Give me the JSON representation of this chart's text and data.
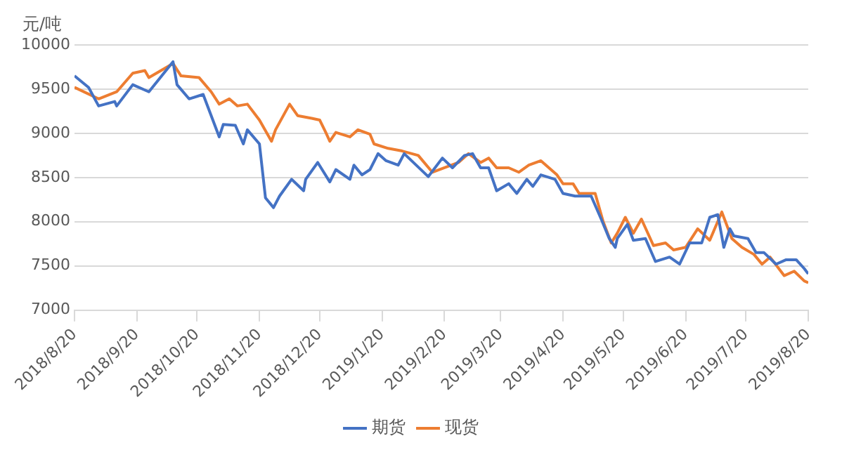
{
  "chart_data": {
    "type": "line",
    "ylabel": "元/吨",
    "ylim": [
      7000,
      10000
    ],
    "yticks": [
      7000,
      7500,
      8000,
      8500,
      9000,
      9500,
      10000
    ],
    "xlim": [
      "2018-08-20",
      "2019-08-20"
    ],
    "xticks": [
      {
        "value": "2018-08-20",
        "label": "2018/8/20"
      },
      {
        "value": "2018-09-20",
        "label": "2018/9/20"
      },
      {
        "value": "2018-10-20",
        "label": "2018/10/20"
      },
      {
        "value": "2018-11-20",
        "label": "2018/11/20"
      },
      {
        "value": "2018-12-20",
        "label": "2018/12/20"
      },
      {
        "value": "2019-01-20",
        "label": "2019/1/20"
      },
      {
        "value": "2019-02-20",
        "label": "2019/2/20"
      },
      {
        "value": "2019-03-20",
        "label": "2019/3/20"
      },
      {
        "value": "2019-04-20",
        "label": "2019/4/20"
      },
      {
        "value": "2019-05-20",
        "label": "2019/5/20"
      },
      {
        "value": "2019-06-20",
        "label": "2019/6/20"
      },
      {
        "value": "2019-07-20",
        "label": "2019/7/20"
      },
      {
        "value": "2019-08-20",
        "label": "2019/8/20"
      }
    ],
    "grid": "y",
    "legend": "bottom",
    "marker": "none",
    "line_style": "solid",
    "series": [
      {
        "name": "期货",
        "color": "#4472c4",
        "x": [
          "2018-08-20",
          "2018-08-27",
          "2018-09-01",
          "2018-09-09",
          "2018-09-10",
          "2018-09-18",
          "2018-09-26",
          "2018-10-08",
          "2018-10-10",
          "2018-10-16",
          "2018-10-23",
          "2018-10-31",
          "2018-11-02",
          "2018-11-08",
          "2018-11-12",
          "2018-11-14",
          "2018-11-20",
          "2018-11-23",
          "2018-11-27",
          "2018-11-30",
          "2018-12-06",
          "2018-12-12",
          "2018-12-13",
          "2018-12-19",
          "2018-12-25",
          "2018-12-28",
          "2019-01-04",
          "2019-01-06",
          "2019-01-10",
          "2019-01-14",
          "2019-01-18",
          "2019-01-22",
          "2019-01-28",
          "2019-01-31",
          "2019-02-12",
          "2019-02-19",
          "2019-02-24",
          "2019-03-02",
          "2019-03-06",
          "2019-03-10",
          "2019-03-14",
          "2019-03-18",
          "2019-03-24",
          "2019-03-28",
          "2019-04-02",
          "2019-04-05",
          "2019-04-09",
          "2019-04-16",
          "2019-04-20",
          "2019-04-26",
          "2019-05-04",
          "2019-05-09",
          "2019-05-13",
          "2019-05-16",
          "2019-05-17",
          "2019-05-22",
          "2019-05-25",
          "2019-05-31",
          "2019-06-05",
          "2019-06-12",
          "2019-06-17",
          "2019-06-22",
          "2019-06-28",
          "2019-07-02",
          "2019-07-06",
          "2019-07-09",
          "2019-07-12",
          "2019-07-14",
          "2019-07-21",
          "2019-07-25",
          "2019-07-29",
          "2019-08-04",
          "2019-08-09",
          "2019-08-14",
          "2019-08-18",
          "2019-08-20"
        ],
        "values": [
          9650,
          9520,
          9310,
          9360,
          9310,
          9550,
          9470,
          9810,
          9550,
          9390,
          9440,
          8960,
          9100,
          9090,
          8880,
          9040,
          8880,
          8270,
          8160,
          8290,
          8480,
          8350,
          8480,
          8670,
          8450,
          8590,
          8480,
          8640,
          8530,
          8590,
          8770,
          8690,
          8640,
          8770,
          8510,
          8720,
          8610,
          8750,
          8770,
          8610,
          8610,
          8350,
          8430,
          8320,
          8480,
          8400,
          8530,
          8480,
          8320,
          8290,
          8290,
          8030,
          7810,
          7710,
          7810,
          7970,
          7790,
          7810,
          7550,
          7600,
          7520,
          7760,
          7760,
          8050,
          8080,
          7710,
          7920,
          7840,
          7810,
          7650,
          7650,
          7520,
          7570,
          7570,
          7470,
          7410
        ]
      },
      {
        "name": "现货",
        "color": "#ed7d31",
        "x": [
          "2018-08-20",
          "2018-09-01",
          "2018-09-10",
          "2018-09-18",
          "2018-09-24",
          "2018-09-26",
          "2018-10-08",
          "2018-10-12",
          "2018-10-21",
          "2018-10-27",
          "2018-10-31",
          "2018-11-05",
          "2018-11-09",
          "2018-11-14",
          "2018-11-20",
          "2018-11-26",
          "2018-11-28",
          "2018-12-05",
          "2018-12-09",
          "2018-12-16",
          "2018-12-20",
          "2018-12-23",
          "2018-12-25",
          "2018-12-28",
          "2019-01-04",
          "2019-01-08",
          "2019-01-14",
          "2019-01-16",
          "2019-01-23",
          "2019-01-30",
          "2019-02-07",
          "2019-02-14",
          "2019-02-20",
          "2019-02-27",
          "2019-03-04",
          "2019-03-10",
          "2019-03-14",
          "2019-03-18",
          "2019-03-24",
          "2019-03-29",
          "2019-04-03",
          "2019-04-09",
          "2019-04-13",
          "2019-04-17",
          "2019-04-20",
          "2019-04-25",
          "2019-04-28",
          "2019-05-06",
          "2019-05-10",
          "2019-05-14",
          "2019-05-17",
          "2019-05-21",
          "2019-05-25",
          "2019-05-29",
          "2019-06-04",
          "2019-06-10",
          "2019-06-14",
          "2019-06-20",
          "2019-06-26",
          "2019-07-02",
          "2019-07-08",
          "2019-07-13",
          "2019-07-18",
          "2019-07-24",
          "2019-07-28",
          "2019-08-01",
          "2019-08-08",
          "2019-08-13",
          "2019-08-18",
          "2019-08-20"
        ],
        "values": [
          9520,
          9390,
          9470,
          9680,
          9710,
          9630,
          9790,
          9650,
          9630,
          9470,
          9330,
          9390,
          9310,
          9330,
          9150,
          8910,
          9040,
          9330,
          9200,
          9170,
          9150,
          9010,
          8910,
          9010,
          8960,
          9040,
          8990,
          8880,
          8830,
          8800,
          8750,
          8560,
          8610,
          8670,
          8770,
          8670,
          8720,
          8610,
          8610,
          8560,
          8640,
          8690,
          8610,
          8530,
          8430,
          8430,
          8320,
          8320,
          8000,
          7760,
          7870,
          8050,
          7870,
          8030,
          7730,
          7760,
          7680,
          7710,
          7920,
          7790,
          8110,
          7810,
          7710,
          7630,
          7520,
          7600,
          7390,
          7440,
          7330,
          7310
        ]
      }
    ]
  }
}
